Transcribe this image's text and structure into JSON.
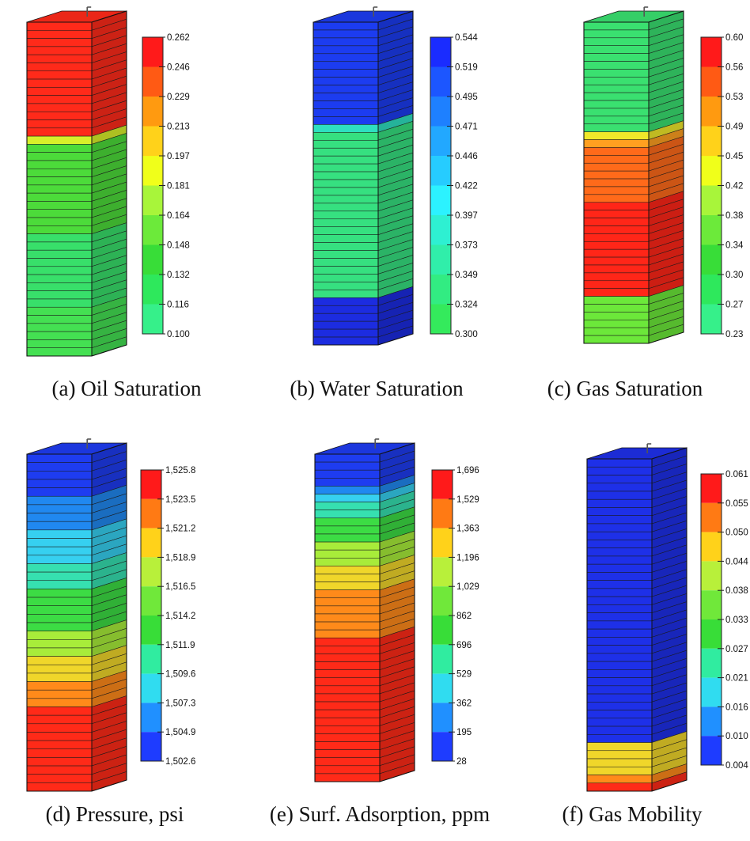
{
  "panels": [
    {
      "caption": "(a) Oil Saturation",
      "ticks": [
        "0.262",
        "0.246",
        "0.229",
        "0.213",
        "0.197",
        "0.181",
        "0.164",
        "0.148",
        "0.132",
        "0.116",
        "0.100"
      ],
      "colorbar": [
        "#ff1a1a",
        "#ff5a14",
        "#ff9a10",
        "#ffd21a",
        "#f0ff1a",
        "#a8f53a",
        "#6cea3a",
        "#38dd38",
        "#2ee85c",
        "#36f08a"
      ],
      "layers": [
        {
          "n": 14,
          "color": "#ff2a1a"
        },
        {
          "n": 1,
          "color": "#d8f02a"
        },
        {
          "n": 11,
          "color": "#4cdb3a"
        },
        {
          "n": 9,
          "color": "#38df6a"
        },
        {
          "n": 6,
          "color": "#44e052"
        }
      ]
    },
    {
      "caption": "(b) Water Saturation",
      "ticks": [
        "0.544",
        "0.519",
        "0.495",
        "0.471",
        "0.446",
        "0.422",
        "0.397",
        "0.373",
        "0.349",
        "0.324",
        "0.300"
      ],
      "colorbar": [
        "#1a2cff",
        "#1c56ff",
        "#1e80ff",
        "#22a8ff",
        "#26ccff",
        "#2cf2ff",
        "#2ef0d2",
        "#30eeaa",
        "#32ec82",
        "#34ea5c"
      ],
      "layers": [
        {
          "n": 13,
          "color": "#1c3cf0"
        },
        {
          "n": 1,
          "color": "#2ee0c0"
        },
        {
          "n": 21,
          "color": "#36e080"
        },
        {
          "n": 6,
          "color": "#1c2ce0"
        }
      ]
    },
    {
      "caption": "(c) Gas Saturation",
      "ticks": [
        "0.60",
        "0.56",
        "0.53",
        "0.49",
        "0.45",
        "0.42",
        "0.38",
        "0.34",
        "0.30",
        "0.27",
        "0.23"
      ],
      "colorbar": [
        "#ff1a1a",
        "#ff5a14",
        "#ff9a10",
        "#ffd21a",
        "#f0ff1a",
        "#a8f53a",
        "#6cea3a",
        "#38dd38",
        "#2ee85c",
        "#36f08a"
      ],
      "layers": [
        {
          "n": 14,
          "color": "#3ae070"
        },
        {
          "n": 1,
          "color": "#f0e82a"
        },
        {
          "n": 1,
          "color": "#ffa020"
        },
        {
          "n": 7,
          "color": "#ff6a1a"
        },
        {
          "n": 12,
          "color": "#ff2618"
        },
        {
          "n": 6,
          "color": "#6ce83a"
        }
      ]
    },
    {
      "caption": "(d) Pressure, psi",
      "ticks": [
        "1,525.8",
        "1,523.5",
        "1,521.2",
        "1,518.9",
        "1,516.5",
        "1,514.2",
        "1,511.9",
        "1,509.6",
        "1,507.3",
        "1,504.9",
        "1,502.6"
      ],
      "colorbar": [
        "#ff1a1a",
        "#ff7a14",
        "#ffd21a",
        "#b8f03a",
        "#70e83a",
        "#38dd38",
        "#30eca0",
        "#30dcf0",
        "#2090ff",
        "#1e3cff"
      ],
      "layers": [
        {
          "n": 5,
          "color": "#1e3cf0"
        },
        {
          "n": 4,
          "color": "#2088f0"
        },
        {
          "n": 4,
          "color": "#36d0f0"
        },
        {
          "n": 3,
          "color": "#36e0b0"
        },
        {
          "n": 5,
          "color": "#3cdc44"
        },
        {
          "n": 3,
          "color": "#a8ec3a"
        },
        {
          "n": 3,
          "color": "#f0d62a"
        },
        {
          "n": 3,
          "color": "#ff8a1a"
        },
        {
          "n": 10,
          "color": "#ff2a18"
        }
      ]
    },
    {
      "caption": "(e) Surf. Adsorption, ppm",
      "ticks": [
        "1,696",
        "1,529",
        "1,363",
        "1,196",
        "1,029",
        "862",
        "696",
        "529",
        "362",
        "195",
        "28"
      ],
      "colorbar": [
        "#ff1a1a",
        "#ff7a14",
        "#ffd21a",
        "#b8f03a",
        "#70e83a",
        "#38dd38",
        "#30eca0",
        "#30dcf0",
        "#2090ff",
        "#1e3cff"
      ],
      "layers": [
        {
          "n": 4,
          "color": "#1e3cf0"
        },
        {
          "n": 1,
          "color": "#2088f0"
        },
        {
          "n": 1,
          "color": "#36d0f0"
        },
        {
          "n": 2,
          "color": "#36e0b0"
        },
        {
          "n": 3,
          "color": "#3cdc44"
        },
        {
          "n": 3,
          "color": "#a8ec3a"
        },
        {
          "n": 3,
          "color": "#f0d62a"
        },
        {
          "n": 6,
          "color": "#ff8a1a"
        },
        {
          "n": 18,
          "color": "#ff2a18"
        }
      ]
    },
    {
      "caption": "(f) Gas Mobility",
      "ticks": [
        "0.061",
        "0.055",
        "0.050",
        "0.044",
        "0.038",
        "0.033",
        "0.027",
        "0.021",
        "0.016",
        "0.010",
        "0.004"
      ],
      "colorbar": [
        "#ff1a1a",
        "#ff7a14",
        "#ffd21a",
        "#b8f03a",
        "#70e83a",
        "#38dd38",
        "#30eca0",
        "#30dcf0",
        "#2090ff",
        "#1e3cff"
      ],
      "layers": [
        {
          "n": 35,
          "color": "#1e30e8"
        },
        {
          "n": 4,
          "color": "#f0d62a"
        },
        {
          "n": 1,
          "color": "#ff8a1a"
        },
        {
          "n": 1,
          "color": "#ff2a18"
        }
      ]
    }
  ]
}
